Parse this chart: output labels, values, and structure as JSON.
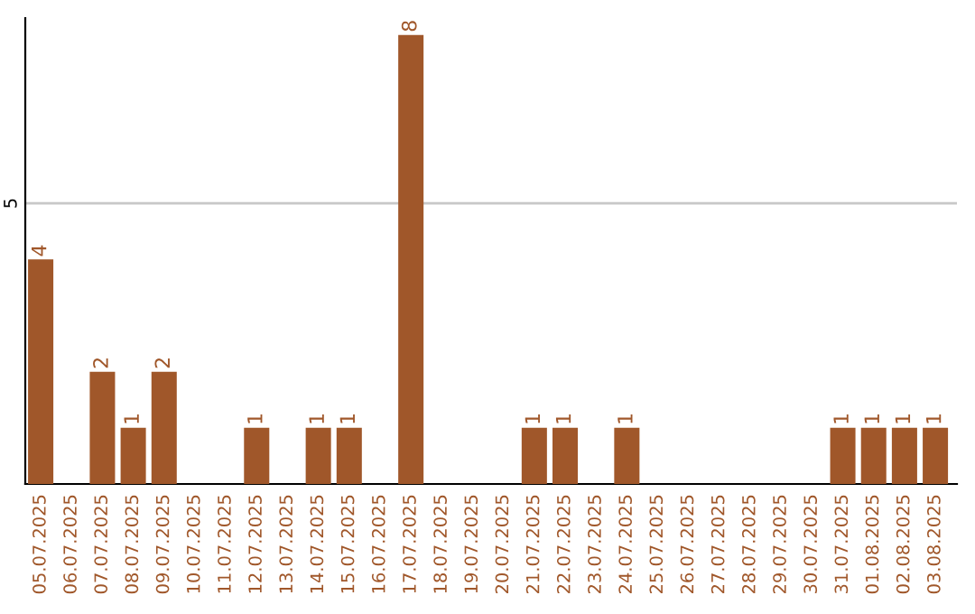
{
  "chart_data": {
    "type": "bar",
    "categories": [
      "05.07.2025",
      "06.07.2025",
      "07.07.2025",
      "08.07.2025",
      "09.07.2025",
      "10.07.2025",
      "11.07.2025",
      "12.07.2025",
      "13.07.2025",
      "14.07.2025",
      "15.07.2025",
      "16.07.2025",
      "17.07.2025",
      "18.07.2025",
      "19.07.2025",
      "20.07.2025",
      "21.07.2025",
      "22.07.2025",
      "23.07.2025",
      "24.07.2025",
      "25.07.2025",
      "26.07.2025",
      "27.07.2025",
      "28.07.2025",
      "29.07.2025",
      "30.07.2025",
      "31.07.2025",
      "01.08.2025",
      "02.08.2025",
      "03.08.2025"
    ],
    "values": [
      4,
      0,
      2,
      1,
      2,
      0,
      0,
      1,
      0,
      1,
      1,
      0,
      8,
      0,
      0,
      0,
      1,
      1,
      0,
      1,
      0,
      0,
      0,
      0,
      0,
      0,
      1,
      1,
      1,
      1
    ],
    "value_labels": [
      "4",
      null,
      "2",
      "1",
      "2",
      null,
      null,
      "1",
      null,
      "1",
      "1",
      null,
      "8",
      null,
      null,
      null,
      "1",
      "1",
      null,
      "1",
      null,
      null,
      null,
      null,
      null,
      null,
      "1",
      "1",
      "1",
      "1"
    ],
    "color": "#a0572a",
    "ylim": [
      0,
      8.3
    ],
    "yticks": [
      5
    ],
    "grid": "y"
  }
}
